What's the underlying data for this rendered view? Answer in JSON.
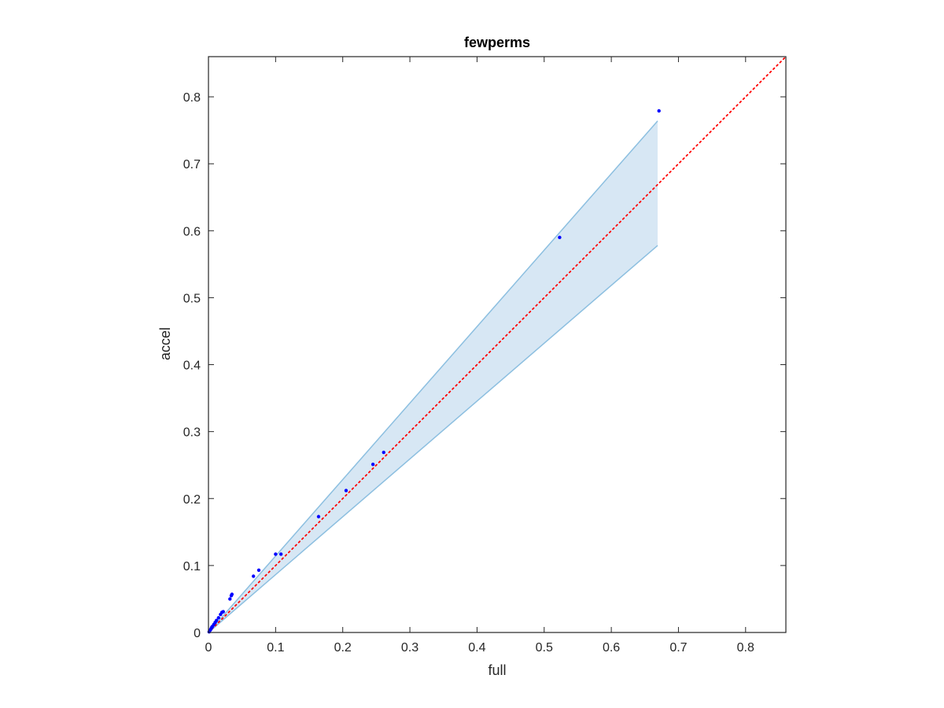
{
  "chart_data": {
    "type": "scatter",
    "title": "fewperms",
    "xlabel": "full",
    "ylabel": "accel",
    "xlim": [
      0,
      0.86
    ],
    "ylim": [
      0,
      0.86
    ],
    "xticks": [
      "0",
      "0.1",
      "0.2",
      "0.3",
      "0.4",
      "0.5",
      "0.6",
      "0.7",
      "0.8"
    ],
    "yticks": [
      "0",
      "0.1",
      "0.2",
      "0.3",
      "0.4",
      "0.5",
      "0.6",
      "0.7",
      "0.8"
    ],
    "grid": false,
    "series": [
      {
        "kind": "points",
        "color": "#0000ff",
        "x": [
          0.001,
          0.002,
          0.003,
          0.004,
          0.005,
          0.006,
          0.008,
          0.01,
          0.012,
          0.015,
          0.018,
          0.02,
          0.022,
          0.032,
          0.034,
          0.035,
          0.067,
          0.075,
          0.1,
          0.108,
          0.164,
          0.205,
          0.245,
          0.261,
          0.523,
          0.671
        ],
        "y": [
          0.001,
          0.003,
          0.004,
          0.006,
          0.008,
          0.009,
          0.012,
          0.015,
          0.018,
          0.022,
          0.027,
          0.03,
          0.031,
          0.05,
          0.055,
          0.057,
          0.084,
          0.093,
          0.117,
          0.117,
          0.173,
          0.212,
          0.251,
          0.269,
          0.59,
          0.779
        ]
      },
      {
        "kind": "reference-line",
        "color": "#ff0000",
        "style": "dotted",
        "x": [
          0,
          0.86
        ],
        "y": [
          0,
          0.86
        ]
      },
      {
        "kind": "band",
        "fill": "#d7e7f4",
        "stroke": "#8cbfe0",
        "x": [
          0,
          0.669
        ],
        "upper": [
          0,
          0.764
        ],
        "lower": [
          0,
          0.578
        ]
      }
    ]
  }
}
